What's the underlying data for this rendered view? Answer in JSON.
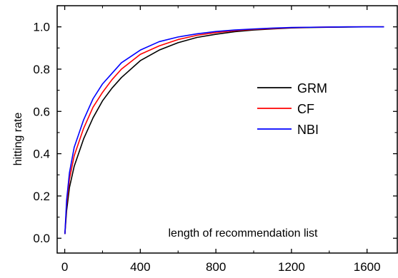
{
  "chart_data": {
    "type": "line",
    "title": "",
    "xlabel": "",
    "ylabel": "hitting rate",
    "annotation": "length of recommendation list",
    "xlim": [
      -40,
      1760
    ],
    "ylim": [
      -0.07,
      1.1
    ],
    "x_ticks": [
      0,
      400,
      800,
      1200,
      1600
    ],
    "y_ticks": [
      0.0,
      0.2,
      0.4,
      0.6,
      0.8,
      1.0
    ],
    "x_tick_labels": [
      "0",
      "400",
      "800",
      "1200",
      "1600"
    ],
    "y_tick_labels": [
      "0.0",
      "0.2",
      "0.4",
      "0.6",
      "0.8",
      "1.0"
    ],
    "grid": false,
    "legend_position": "right",
    "series": [
      {
        "name": "GRM",
        "color": "#000000",
        "x": [
          1,
          10,
          25,
          50,
          100,
          150,
          200,
          250,
          300,
          400,
          500,
          600,
          700,
          800,
          900,
          1000,
          1100,
          1200,
          1300,
          1400,
          1500,
          1600,
          1690
        ],
        "y": [
          0.02,
          0.13,
          0.24,
          0.34,
          0.47,
          0.57,
          0.65,
          0.71,
          0.76,
          0.84,
          0.89,
          0.925,
          0.95,
          0.965,
          0.977,
          0.985,
          0.99,
          0.995,
          0.997,
          0.998,
          0.999,
          1.0,
          1.0
        ]
      },
      {
        "name": "CF",
        "color": "#ff0000",
        "x": [
          1,
          10,
          25,
          50,
          100,
          150,
          200,
          250,
          300,
          400,
          500,
          600,
          700,
          800,
          900,
          1000,
          1100,
          1200,
          1300,
          1400,
          1500,
          1600,
          1690
        ],
        "y": [
          0.02,
          0.16,
          0.28,
          0.39,
          0.52,
          0.62,
          0.69,
          0.75,
          0.8,
          0.87,
          0.91,
          0.94,
          0.96,
          0.973,
          0.982,
          0.988,
          0.992,
          0.996,
          0.998,
          0.999,
          1.0,
          1.0,
          1.0
        ]
      },
      {
        "name": "NBI",
        "color": "#0000ff",
        "x": [
          1,
          10,
          25,
          50,
          100,
          150,
          200,
          250,
          300,
          400,
          500,
          600,
          700,
          800,
          900,
          1000,
          1100,
          1200,
          1300,
          1400,
          1500,
          1600,
          1690
        ],
        "y": [
          0.02,
          0.18,
          0.31,
          0.43,
          0.56,
          0.66,
          0.73,
          0.78,
          0.83,
          0.89,
          0.93,
          0.952,
          0.967,
          0.978,
          0.985,
          0.99,
          0.994,
          0.997,
          0.998,
          0.999,
          1.0,
          1.0,
          1.0
        ]
      }
    ]
  }
}
